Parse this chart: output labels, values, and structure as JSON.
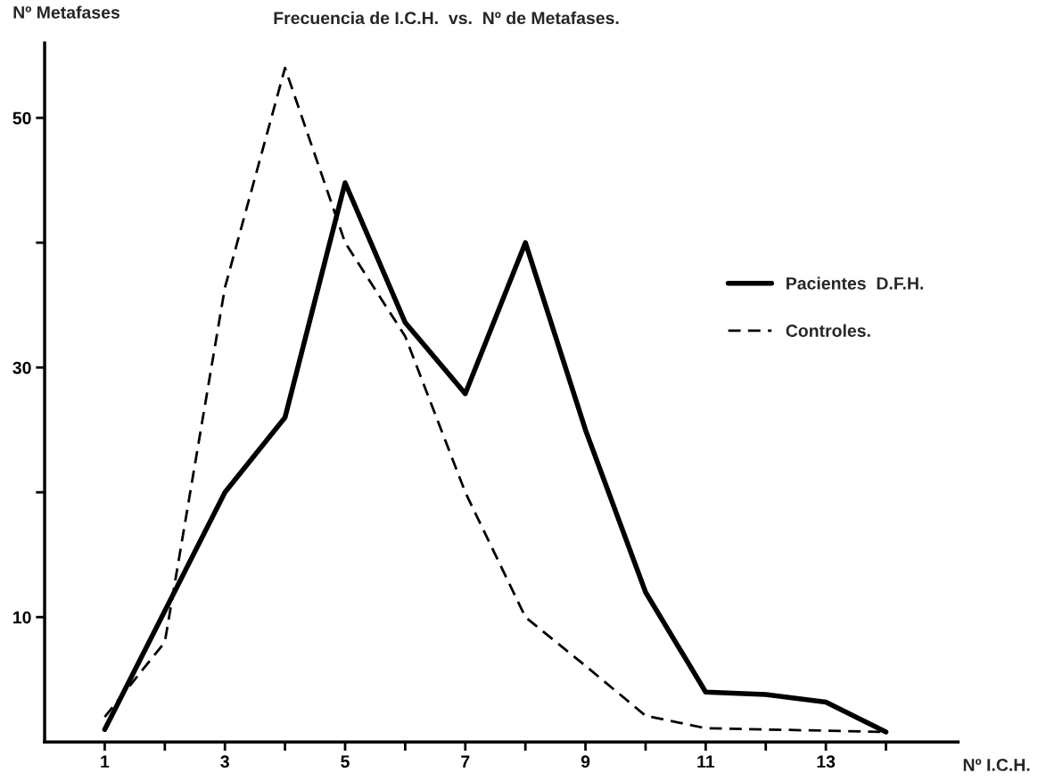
{
  "chart_data": {
    "type": "line",
    "title": "Frecuencia de I.C.H.  vs.  Nº de Metafases.",
    "xlabel": "Nº I.C.H.",
    "ylabel": "Nº Metafases",
    "x": [
      1,
      2,
      3,
      4,
      5,
      6,
      7,
      8,
      9,
      10,
      11,
      12,
      13,
      14
    ],
    "series": [
      {
        "name": "Pacientes  D.F.H.",
        "color": "#000000",
        "line_style": "solid",
        "values": [
          1.0,
          10.5,
          20,
          26,
          44.8,
          33.6,
          27.9,
          40,
          25,
          12,
          4.0,
          3.8,
          3.2,
          0.8
        ]
      },
      {
        "name": "Controles.",
        "color": "#000000",
        "line_style": "dashed",
        "values": [
          2.0,
          8.0,
          36.4,
          54,
          40,
          32.5,
          20,
          10,
          6.1,
          2.1,
          1.1,
          1.0,
          0.9,
          0.8
        ]
      }
    ],
    "xlim": [
      0,
      15.2
    ],
    "ylim": [
      0,
      56
    ],
    "xticks": [
      1,
      {
        "value": 2,
        "label": null
      },
      3,
      {
        "value": 4,
        "label": null
      },
      5,
      {
        "value": 6,
        "label": null
      },
      7,
      {
        "value": 8,
        "label": null
      },
      9,
      {
        "value": 10,
        "label": null
      },
      11,
      {
        "value": 12,
        "label": null
      },
      13,
      {
        "value": 14,
        "label": null
      }
    ],
    "yticks": [
      10,
      {
        "value": 20,
        "label": null
      },
      30,
      {
        "value": 40,
        "label": null
      },
      50
    ],
    "grid": false,
    "legend": "right",
    "marker": "none"
  }
}
